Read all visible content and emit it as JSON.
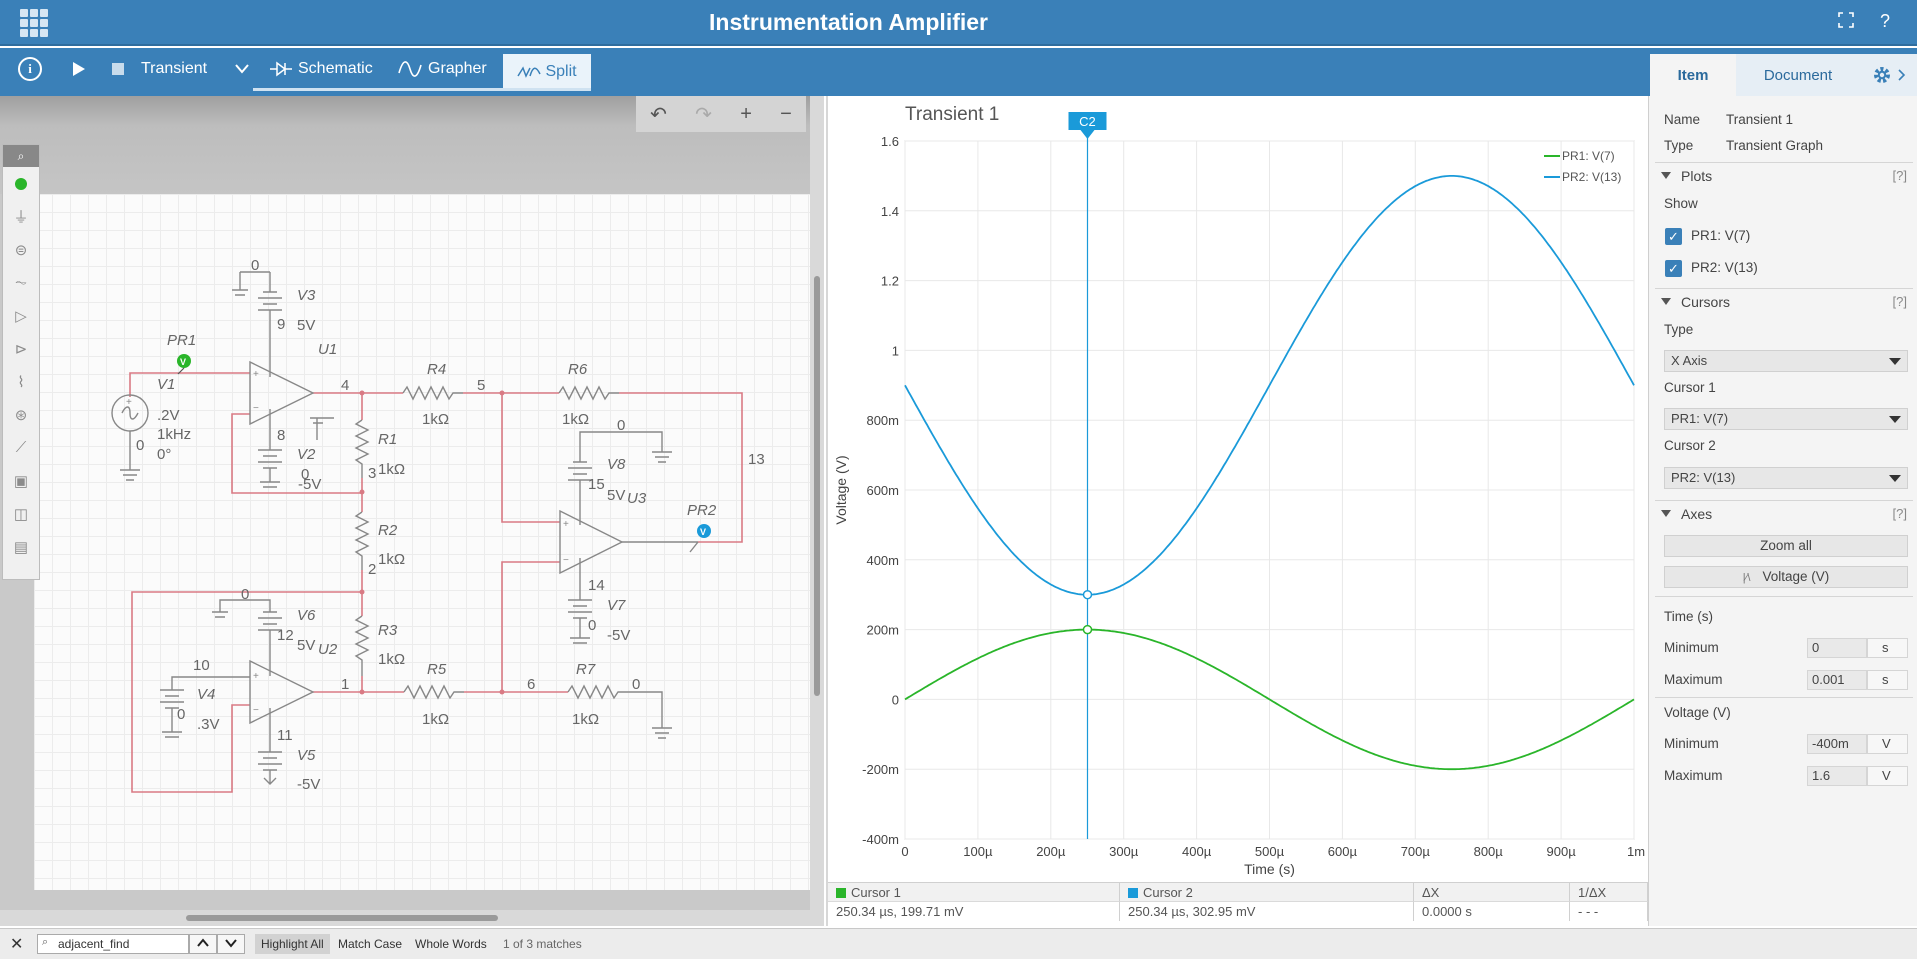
{
  "app": {
    "title": "Instrumentation Amplifier",
    "fullscreen_icon": "fullscreen-icon",
    "help_label": "?"
  },
  "toolbar": {
    "info_label": "i",
    "analysis_mode": "Transient",
    "tabs": {
      "schematic": "Schematic",
      "grapher": "Grapher",
      "split": "Split"
    }
  },
  "panel_tabs": {
    "item": "Item",
    "document": "Document"
  },
  "schematic": {
    "labels": {
      "v1": "V1",
      "v1_amp": ".2V",
      "v1_freq": "1kHz",
      "v1_phase": "0°",
      "v1_node": "0",
      "pr1": "PR1",
      "pr2": "PR2",
      "u1": "U1",
      "u2": "U2",
      "u3": "U3",
      "v2": "V2",
      "v2_val": "-5V",
      "v3": "V3",
      "v3_val": "5V",
      "v4": "V4",
      "v4_val": ".3V",
      "v5": "V5",
      "v5_val": "-5V",
      "v6": "V6",
      "v6_val": "5V",
      "v7": "V7",
      "v7_val": "-5V",
      "v8": "V8",
      "v8_val": "5V",
      "r1": "R1",
      "r1_val": "1kΩ",
      "r2": "R2",
      "r2_val": "1kΩ",
      "r3": "R3",
      "r3_val": "1kΩ",
      "r4": "R4",
      "r4_val": "1kΩ",
      "r5": "R5",
      "r5_val": "1kΩ",
      "r6": "R6",
      "r6_val": "1kΩ",
      "r7": "R7",
      "r7_val": "1kΩ",
      "n0a": "0",
      "n9": "9",
      "n8": "8",
      "n0b": "0",
      "n4": "4",
      "n5": "5",
      "n3": "3",
      "n2": "2",
      "n0c": "0",
      "n12": "12",
      "n10": "10",
      "n0d": "0",
      "n11": "11",
      "n1": "1",
      "n6": "6",
      "n0e": "0",
      "n0f": "0",
      "n15": "15",
      "n13": "13",
      "n14": "14",
      "n0g": "0"
    }
  },
  "graph": {
    "title": "Transient 1",
    "cursor_tag": "C2",
    "legend": [
      "PR1: V(7)",
      "PR2: V(13)"
    ]
  },
  "chart_data": {
    "type": "line",
    "title": "Transient 1",
    "xlabel": "Time (s)",
    "ylabel": "Voltage (V)",
    "xlim": [
      0,
      0.001
    ],
    "ylim": [
      -0.4,
      1.6
    ],
    "x_tick_labels": [
      "0",
      "100µ",
      "200µ",
      "300µ",
      "400µ",
      "500µ",
      "600µ",
      "700µ",
      "800µ",
      "900µ",
      "1m"
    ],
    "y_tick_labels": [
      "-400m",
      "-200m",
      "0",
      "200m",
      "400m",
      "600m",
      "800m",
      "1",
      "1.2",
      "1.4",
      "1.6"
    ],
    "grid": true,
    "legend_position": "top-right",
    "series": [
      {
        "name": "PR1: V(7)",
        "color": "#2ab52a",
        "formula": "0.2*sin(2*pi*1000*t)",
        "offset": 0,
        "amplitude": 0.2
      },
      {
        "name": "PR2: V(13)",
        "color": "#1a9ad9",
        "formula": "0.9-0.6*sin(2*pi*1000*t)",
        "offset": 0.9,
        "amplitude": -0.6
      }
    ],
    "cursor_x": 0.00025034
  },
  "cursors": {
    "headers": [
      "Cursor 1",
      "Cursor 2",
      "ΔX",
      "1/ΔX"
    ],
    "values": [
      "250.34 µs, 199.71 mV",
      "250.34 µs, 302.95 mV",
      "0.0000 s",
      "- - -"
    ],
    "colors": [
      "#2ab52a",
      "#1a9ad9"
    ]
  },
  "properties": {
    "name_label": "Name",
    "name_value": "Transient 1",
    "type_label": "Type",
    "type_value": "Transient Graph",
    "plots_section": "Plots",
    "help_marker": "[?]",
    "show_label": "Show",
    "plot1": "PR1: V(7)",
    "plot2": "PR2: V(13)",
    "cursors_section": "Cursors",
    "cursor_type_label": "Type",
    "cursor_type_value": "X Axis",
    "cursor1_label": "Cursor 1",
    "cursor1_value": "PR1: V(7)",
    "cursor2_label": "Cursor 2",
    "cursor2_value": "PR2: V(13)",
    "axes_section": "Axes",
    "zoom_all": "Zoom all",
    "voltage_button": "Voltage (V)",
    "time_label": "Time (s)",
    "time_min_label": "Minimum",
    "time_min": "0",
    "time_unit": "s",
    "time_max_label": "Maximum",
    "time_max": "0.001",
    "voltage_label": "Voltage (V)",
    "volt_min_label": "Minimum",
    "volt_min": "-400m",
    "volt_unit": "V",
    "volt_max_label": "Maximum",
    "volt_max": "1.6"
  },
  "findbar": {
    "query": "adjacent_find",
    "highlight_all": "Highlight All",
    "match_case": "Match Case",
    "whole_words": "Whole Words",
    "status": "1 of 3 matches"
  }
}
